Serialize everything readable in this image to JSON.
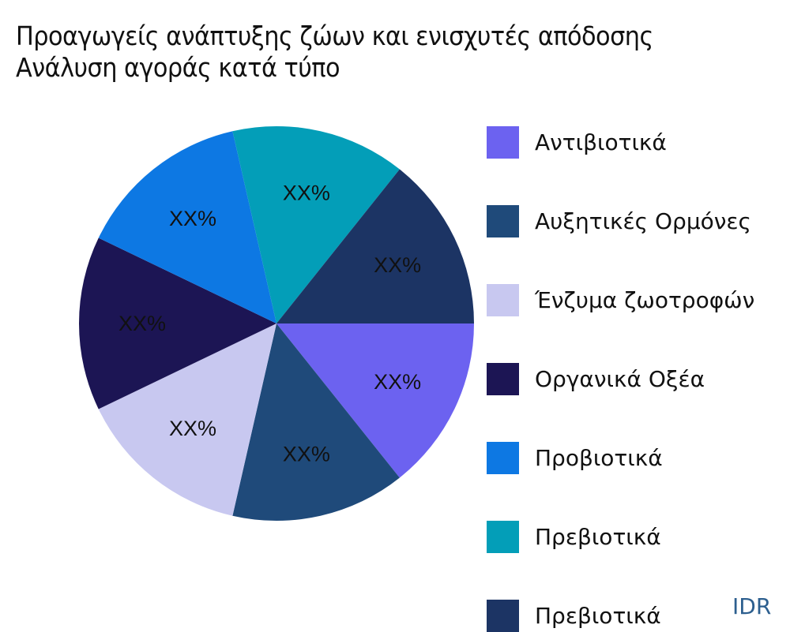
{
  "title": {
    "line1": "Προαγωγείς ανάπτυξης ζώων και ενισχυτές απόδοσης",
    "line2": "Ανάλυση αγοράς κατά τύπο"
  },
  "legend": {
    "items": [
      {
        "label": "Αντιβιοτικά",
        "color": "#6c62f0"
      },
      {
        "label": "Αυξητικές Ορμόνες",
        "color": "#1f4a7a"
      },
      {
        "label": "Ένζυμα ζωοτροφών",
        "color": "#c8c8f0"
      },
      {
        "label": "Οργανικά Οξέα",
        "color": "#1c1554"
      },
      {
        "label": "Προβιοτικά",
        "color": "#0d78e3"
      },
      {
        "label": "Πρεβιοτικά",
        "color": "#039eb8"
      },
      {
        "label": "Πρεβιοτικά",
        "color": "#1c3464"
      }
    ]
  },
  "slice_labels": [
    "XX%",
    "XX%",
    "XX%",
    "XX%",
    "XX%",
    "XX%",
    "XX%"
  ],
  "watermark": "IDR",
  "chart_data": {
    "type": "pie",
    "title": "Προαγωγείς ανάπτυξης ζώων και ενισχυτές απόδοσης Ανάλυση αγοράς κατά τύπο",
    "categories": [
      "Αντιβιοτικά",
      "Αυξητικές Ορμόνες",
      "Ένζυμα ζωοτροφών",
      "Οργανικά Οξέα",
      "Προβιοτικά",
      "Πρεβιοτικά",
      "Πρεβιοτικά"
    ],
    "values": [
      14.29,
      14.29,
      14.29,
      14.29,
      14.29,
      14.29,
      14.29
    ],
    "data_labels": [
      "XX%",
      "XX%",
      "XX%",
      "XX%",
      "XX%",
      "XX%",
      "XX%"
    ],
    "colors": [
      "#6c62f0",
      "#1f4a7a",
      "#c8c8f0",
      "#1c1554",
      "#0d78e3",
      "#039eb8",
      "#1c3464"
    ],
    "start_angle_deg": 0,
    "direction": "clockwise",
    "legend_position": "right"
  }
}
